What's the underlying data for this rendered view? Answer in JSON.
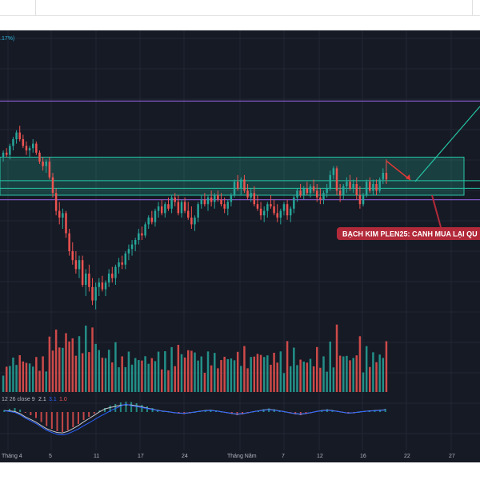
{
  "header_fragment": ".17%)",
  "annotation": {
    "text": "BẠCH KIM PLEN25: CANH MUA LẠI QU",
    "color": "#b22a3a"
  },
  "macd_legend": {
    "params": "12 26 close 9",
    "macd_value": "2.1",
    "signal_value": "3.1",
    "hist_value": "1.0",
    "params_color": "#b2b5be",
    "macd_color": "#c7c9cf",
    "signal_color": "#2962ff",
    "hist_color": "#ef5350"
  },
  "colors": {
    "background": "#161a25",
    "up": "#26a69a",
    "down": "#ef5350",
    "zone": "#26c6a6",
    "purple_line": "#7e57c2",
    "arrow": "#e53935",
    "projection": "#26c6a6"
  },
  "x_axis": {
    "ticks": [
      "Tháng 4",
      "5",
      "11",
      "17",
      "24",
      "Tháng Năm",
      "7",
      "12",
      "16",
      "22",
      "27"
    ]
  },
  "chart_data": {
    "type": "candlestick",
    "title": "",
    "x_ticks": [
      "Tháng 4",
      "5",
      "11",
      "17",
      "24",
      "Tháng Năm",
      "7",
      "12",
      "16",
      "22",
      "27"
    ],
    "price_scale": [
      0,
      100
    ],
    "candles": [
      [
        72,
        75,
        70,
        74
      ],
      [
        74,
        76,
        72,
        73
      ],
      [
        73,
        78,
        71,
        77
      ],
      [
        77,
        81,
        75,
        80
      ],
      [
        80,
        84,
        78,
        83
      ],
      [
        83,
        86,
        79,
        80
      ],
      [
        80,
        82,
        76,
        77
      ],
      [
        77,
        79,
        73,
        75
      ],
      [
        75,
        77,
        72,
        76
      ],
      [
        76,
        80,
        74,
        78
      ],
      [
        78,
        79,
        73,
        74
      ],
      [
        74,
        75,
        69,
        70
      ],
      [
        70,
        72,
        66,
        68
      ],
      [
        68,
        71,
        65,
        70
      ],
      [
        70,
        72,
        62,
        63
      ],
      [
        63,
        65,
        54,
        56
      ],
      [
        56,
        58,
        46,
        48
      ],
      [
        48,
        52,
        42,
        45
      ],
      [
        45,
        49,
        40,
        47
      ],
      [
        47,
        48,
        36,
        38
      ],
      [
        38,
        40,
        28,
        30
      ],
      [
        30,
        34,
        24,
        26
      ],
      [
        26,
        30,
        20,
        22
      ],
      [
        22,
        28,
        18,
        26
      ],
      [
        26,
        28,
        14,
        15
      ],
      [
        15,
        22,
        10,
        20
      ],
      [
        20,
        24,
        12,
        14
      ],
      [
        14,
        18,
        6,
        8
      ],
      [
        8,
        16,
        4,
        14
      ],
      [
        14,
        18,
        10,
        16
      ],
      [
        16,
        19,
        12,
        13
      ],
      [
        13,
        17,
        10,
        16
      ],
      [
        16,
        22,
        14,
        20
      ],
      [
        20,
        23,
        16,
        18
      ],
      [
        18,
        24,
        15,
        23
      ],
      [
        23,
        27,
        20,
        25
      ],
      [
        25,
        28,
        22,
        24
      ],
      [
        24,
        30,
        22,
        29
      ],
      [
        29,
        33,
        26,
        31
      ],
      [
        31,
        35,
        28,
        33
      ],
      [
        33,
        36,
        30,
        35
      ],
      [
        35,
        40,
        33,
        38
      ],
      [
        38,
        41,
        35,
        37
      ],
      [
        37,
        43,
        36,
        42
      ],
      [
        42,
        46,
        40,
        45
      ],
      [
        45,
        48,
        42,
        43
      ],
      [
        43,
        49,
        41,
        48
      ],
      [
        48,
        52,
        45,
        50
      ],
      [
        50,
        53,
        46,
        47
      ],
      [
        47,
        52,
        45,
        51
      ],
      [
        51,
        54,
        48,
        49
      ],
      [
        49,
        55,
        47,
        54
      ],
      [
        54,
        56,
        50,
        52
      ],
      [
        52,
        55,
        46,
        47
      ],
      [
        47,
        53,
        45,
        52
      ],
      [
        52,
        54,
        47,
        48
      ],
      [
        48,
        52,
        44,
        45
      ],
      [
        45,
        50,
        40,
        42
      ],
      [
        42,
        46,
        39,
        45
      ],
      [
        45,
        52,
        43,
        51
      ],
      [
        51,
        55,
        49,
        53
      ],
      [
        53,
        56,
        50,
        51
      ],
      [
        51,
        55,
        48,
        54
      ],
      [
        54,
        57,
        50,
        52
      ],
      [
        52,
        56,
        49,
        55
      ],
      [
        55,
        57,
        52,
        53
      ],
      [
        53,
        56,
        50,
        51
      ],
      [
        51,
        54,
        47,
        49
      ],
      [
        49,
        53,
        46,
        52
      ],
      [
        52,
        56,
        50,
        55
      ],
      [
        55,
        62,
        54,
        61
      ],
      [
        61,
        64,
        57,
        58
      ],
      [
        58,
        63,
        55,
        62
      ],
      [
        62,
        64,
        56,
        57
      ],
      [
        57,
        60,
        53,
        54
      ],
      [
        54,
        58,
        52,
        56
      ],
      [
        56,
        59,
        50,
        51
      ],
      [
        51,
        55,
        48,
        49
      ],
      [
        49,
        52,
        44,
        46
      ],
      [
        46,
        50,
        43,
        48
      ],
      [
        48,
        52,
        45,
        51
      ],
      [
        51,
        55,
        49,
        50
      ],
      [
        50,
        53,
        46,
        47
      ],
      [
        47,
        51,
        43,
        45
      ],
      [
        45,
        49,
        42,
        48
      ],
      [
        48,
        52,
        46,
        51
      ],
      [
        51,
        53,
        44,
        46
      ],
      [
        46,
        50,
        43,
        49
      ],
      [
        49,
        55,
        47,
        54
      ],
      [
        54,
        58,
        52,
        57
      ],
      [
        57,
        60,
        54,
        55
      ],
      [
        55,
        59,
        53,
        58
      ],
      [
        58,
        61,
        55,
        56
      ],
      [
        56,
        60,
        54,
        59
      ],
      [
        59,
        62,
        56,
        57
      ],
      [
        57,
        60,
        52,
        54
      ],
      [
        54,
        58,
        51,
        53
      ],
      [
        53,
        57,
        51,
        56
      ],
      [
        56,
        60,
        54,
        58
      ],
      [
        58,
        66,
        57,
        64
      ],
      [
        64,
        68,
        62,
        67
      ],
      [
        67,
        68,
        55,
        57
      ],
      [
        57,
        60,
        52,
        55
      ],
      [
        55,
        60,
        53,
        59
      ],
      [
        59,
        63,
        56,
        61
      ],
      [
        61,
        64,
        57,
        58
      ],
      [
        58,
        62,
        56,
        60
      ],
      [
        60,
        63,
        53,
        55
      ],
      [
        55,
        59,
        49,
        51
      ],
      [
        51,
        56,
        50,
        55
      ],
      [
        55,
        62,
        54,
        61
      ],
      [
        61,
        63,
        56,
        57
      ],
      [
        57,
        62,
        55,
        60
      ],
      [
        60,
        62,
        55,
        57
      ],
      [
        57,
        63,
        56,
        62
      ],
      [
        62,
        67,
        60,
        65
      ],
      [
        65,
        71,
        60,
        62
      ]
    ],
    "resistance_zone": [
      55,
      72
    ],
    "purple_levels": [
      97,
      53
    ],
    "macd_histogram": [
      0.5,
      0.8,
      1.0,
      0.6,
      -0.2,
      -0.8,
      -1.5,
      -2.5,
      -3.5,
      -4.2,
      -4.8,
      -5.0,
      -4.6,
      -3.8,
      -3.0,
      -2.0,
      -1.2,
      -0.4,
      0.4,
      1.0,
      1.6,
      2.0,
      2.4,
      2.6,
      2.5,
      2.2,
      1.8,
      1.4,
      1.0,
      0.6,
      0.3,
      0.1,
      -0.2,
      -0.4,
      -0.5,
      -0.3,
      0.0,
      0.3,
      0.5,
      0.6,
      0.4,
      0.1,
      -0.2,
      -0.5,
      -0.8,
      -0.6,
      -0.3,
      0.1,
      0.4,
      0.7,
      0.9,
      0.7,
      0.4,
      0.1,
      -0.3,
      -0.6,
      -0.8,
      -0.5,
      -0.2,
      0.2,
      0.5,
      0.7,
      0.5,
      0.2,
      -0.1,
      -0.4,
      -0.3,
      0.0,
      0.2,
      0.4,
      0.5,
      0.6,
      0.8
    ]
  }
}
